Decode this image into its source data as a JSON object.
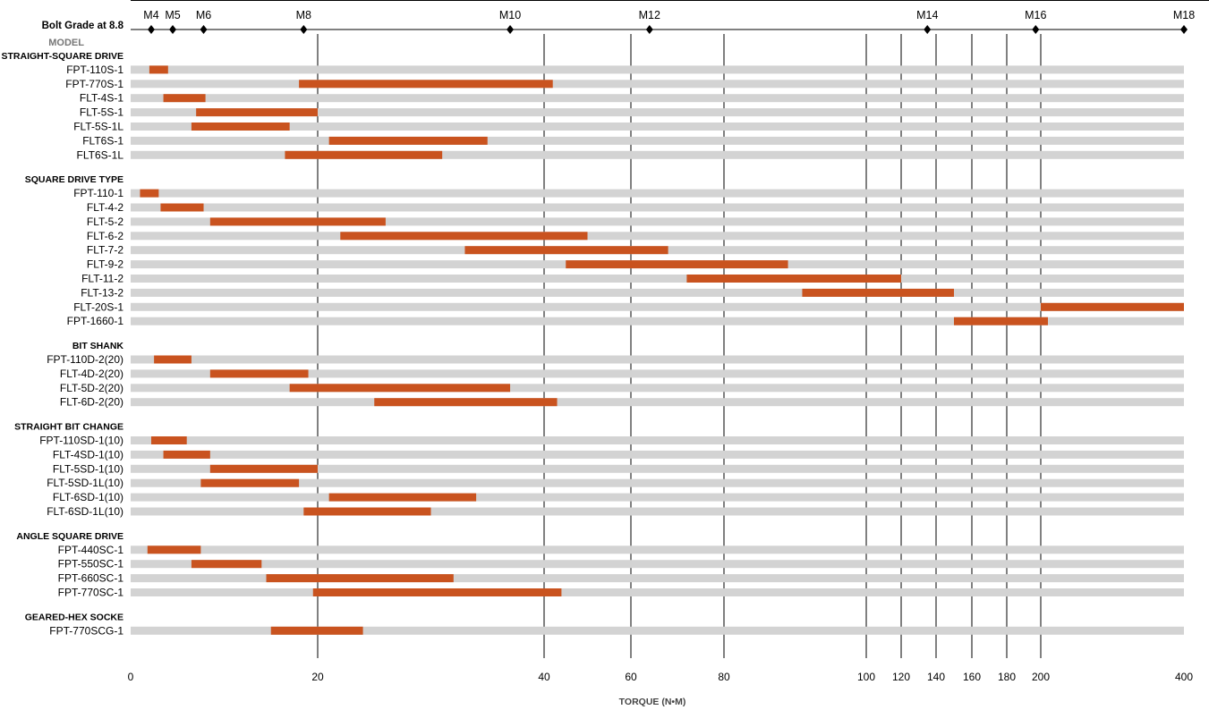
{
  "chart_data": {
    "type": "bar",
    "title": "",
    "xlabel": "TORQUE (N•M)",
    "model_header": "MODEL",
    "bolt_axis": {
      "label": "Bolt Grade at 8.8",
      "marks": [
        {
          "name": "M4",
          "value": 2.2
        },
        {
          "name": "M5",
          "value": 4.5
        },
        {
          "name": "M6",
          "value": 7.8
        },
        {
          "name": "M8",
          "value": 18.5
        },
        {
          "name": "M10",
          "value": 37
        },
        {
          "name": "M12",
          "value": 64
        },
        {
          "name": "M14",
          "value": 135
        },
        {
          "name": "M16",
          "value": 197
        },
        {
          "name": "M18",
          "value": 400
        }
      ]
    },
    "x_ticks": [
      0,
      20,
      40,
      60,
      80,
      100,
      120,
      140,
      160,
      180,
      200,
      400
    ],
    "grid_lines": [
      20,
      40,
      60,
      80,
      100,
      120,
      140,
      160,
      180,
      200
    ],
    "groups": [
      {
        "name": "STRAIGHT-SQUARE DRIVE",
        "items": [
          {
            "label": "FPT-110S-1",
            "min": 2,
            "max": 4
          },
          {
            "label": "FPT-770S-1",
            "min": 18,
            "max": 42
          },
          {
            "label": "FLT-4S-1",
            "min": 3.5,
            "max": 8
          },
          {
            "label": "FLT-5S-1",
            "min": 7,
            "max": 20
          },
          {
            "label": "FLT-5S-1L",
            "min": 6.5,
            "max": 17
          },
          {
            "label": "FLT6S-1",
            "min": 21,
            "max": 35
          },
          {
            "label": "FLT6S-1L",
            "min": 16.5,
            "max": 31
          }
        ]
      },
      {
        "name": "SQUARE DRIVE TYPE",
        "items": [
          {
            "label": "FPT-110-1",
            "min": 1,
            "max": 3
          },
          {
            "label": "FLT-4-2",
            "min": 3.2,
            "max": 7.8
          },
          {
            "label": "FLT-5-2",
            "min": 8.5,
            "max": 26
          },
          {
            "label": "FLT-6-2",
            "min": 22,
            "max": 50
          },
          {
            "label": "FLT-7-2",
            "min": 33,
            "max": 68
          },
          {
            "label": "FLT-9-2",
            "min": 45,
            "max": 89
          },
          {
            "label": "FLT-11-2",
            "min": 72,
            "max": 120
          },
          {
            "label": "FLT-13-2",
            "min": 91,
            "max": 150
          },
          {
            "label": "FLT-20S-1",
            "min": 200,
            "max": 400
          },
          {
            "label": "FPT-1660-1",
            "min": 150,
            "max": 210
          }
        ]
      },
      {
        "name": "BIT SHANK",
        "items": [
          {
            "label": "FPT-110D-2(20)",
            "min": 2.5,
            "max": 6.5
          },
          {
            "label": "FLT-4D-2(20)",
            "min": 8.5,
            "max": 19
          },
          {
            "label": "FLT-5D-2(20)",
            "min": 17,
            "max": 37
          },
          {
            "label": "FLT-6D-2(20)",
            "min": 25,
            "max": 43
          }
        ]
      },
      {
        "name": "STRAIGHT BIT CHANGE",
        "items": [
          {
            "label": "FPT-110SD-1(10)",
            "min": 2.2,
            "max": 6
          },
          {
            "label": "FLT-4SD-1(10)",
            "min": 3.5,
            "max": 8.5
          },
          {
            "label": "FLT-5SD-1(10)",
            "min": 8.5,
            "max": 20
          },
          {
            "label": "FLT-5SD-1L(10)",
            "min": 7.5,
            "max": 18
          },
          {
            "label": "FLT-6SD-1(10)",
            "min": 21,
            "max": 34
          },
          {
            "label": "FLT-6SD-1L(10)",
            "min": 18.5,
            "max": 30
          }
        ]
      },
      {
        "name": "ANGLE SQUARE DRIVE",
        "items": [
          {
            "label": "FPT-440SC-1",
            "min": 1.8,
            "max": 7.5
          },
          {
            "label": "FPT-550SC-1",
            "min": 6.5,
            "max": 14
          },
          {
            "label": "FPT-660SC-1",
            "min": 14.5,
            "max": 32
          },
          {
            "label": "FPT-770SC-1",
            "min": 19.5,
            "max": 44
          }
        ]
      },
      {
        "name": "GEARED-HEX SOCKE",
        "items": [
          {
            "label": "FPT-770SCG-1",
            "min": 15,
            "max": 24
          }
        ]
      }
    ]
  }
}
